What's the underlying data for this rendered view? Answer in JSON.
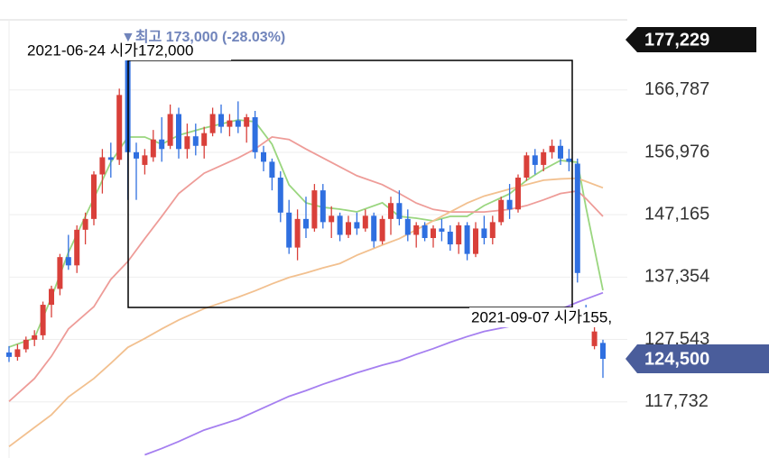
{
  "chart_data": {
    "type": "candlestick",
    "up_color": "#d9403a",
    "down_color": "#2f6fe0",
    "ylim": [
      108900,
      180940
    ],
    "yticks": [
      {
        "value": 166787,
        "label": "166,787"
      },
      {
        "value": 156976,
        "label": "156,976"
      },
      {
        "value": 147165,
        "label": "147,165"
      },
      {
        "value": 137354,
        "label": "137,354"
      },
      {
        "value": 127543,
        "label": "127,543"
      },
      {
        "value": 117732,
        "label": "117,732"
      }
    ],
    "grid": true,
    "top_badge": "177,229",
    "last_price": {
      "value": 124500,
      "label": "124,500",
      "color": "#4a5d9b"
    },
    "high_annotation": "▼최고 173,000 (-28.03%)",
    "range_labels": [
      "2021-06-24 시가172,000",
      "2021-09-07 시가155,"
    ],
    "candles": {
      "open": [
        125500,
        124800,
        126000,
        127500,
        128200,
        133000,
        135500,
        140500,
        139200,
        144800,
        146500,
        153500,
        156200,
        155800,
        172000,
        157000,
        155000,
        156200,
        159000,
        158000,
        163000,
        157500,
        159500,
        158000,
        160000,
        163000,
        161000,
        162000,
        161000,
        162500,
        157000,
        155500,
        153000,
        147500,
        142000,
        146500,
        145000,
        151000,
        146000,
        147000,
        144000,
        146000,
        145000,
        147000,
        143000,
        146500,
        149000,
        146500,
        144000,
        145500,
        143500,
        145000,
        144500,
        142500,
        145500,
        141000,
        145000,
        143500,
        146000,
        149500,
        148000,
        153000,
        156500,
        155000,
        157000,
        158000,
        156000,
        155200,
        132000,
        126500,
        127000
      ],
      "high": [
        126500,
        126800,
        128000,
        129000,
        133500,
        136000,
        141000,
        144000,
        145500,
        147500,
        154000,
        157500,
        158500,
        167000,
        173000,
        158500,
        157500,
        160500,
        162500,
        164500,
        164000,
        161500,
        161500,
        161000,
        164000,
        164500,
        163000,
        165000,
        163000,
        163500,
        158000,
        156000,
        154000,
        149500,
        148000,
        150000,
        152000,
        152000,
        148500,
        147500,
        147000,
        147500,
        148000,
        147500,
        147000,
        150000,
        151000,
        148000,
        146000,
        146000,
        145500,
        146500,
        145500,
        146000,
        146000,
        146000,
        147000,
        147000,
        150000,
        152000,
        153500,
        157000,
        157500,
        157500,
        159000,
        159000,
        157500,
        156000,
        133000,
        132000,
        127500
      ],
      "low": [
        124000,
        124200,
        125500,
        126500,
        127500,
        131000,
        134500,
        138500,
        138000,
        142500,
        145500,
        150500,
        153000,
        155000,
        149500,
        149500,
        153500,
        155500,
        155500,
        157500,
        156000,
        156000,
        156500,
        156000,
        159500,
        160000,
        159500,
        160000,
        158500,
        156000,
        154000,
        151000,
        146000,
        141000,
        140000,
        143500,
        144500,
        145000,
        143500,
        143000,
        143500,
        144000,
        144500,
        142000,
        142500,
        144000,
        145500,
        143000,
        142000,
        143000,
        142000,
        143000,
        141500,
        141000,
        140000,
        140500,
        142500,
        142500,
        145500,
        146500,
        147500,
        152500,
        153500,
        154000,
        156000,
        155000,
        154000,
        136500,
        129500,
        126000,
        121500
      ],
      "close": [
        124800,
        126000,
        127500,
        128200,
        133000,
        135500,
        140500,
        139200,
        144800,
        146500,
        153500,
        156200,
        155800,
        166000,
        157000,
        156000,
        156500,
        159000,
        157500,
        163000,
        157500,
        159500,
        158000,
        160000,
        163000,
        161000,
        162000,
        161000,
        162500,
        157000,
        155500,
        153000,
        147500,
        142000,
        146500,
        145000,
        151000,
        146000,
        147000,
        144000,
        146000,
        145000,
        147000,
        143000,
        146500,
        149000,
        146500,
        144000,
        145500,
        143500,
        145000,
        144500,
        142500,
        145500,
        141000,
        145000,
        143500,
        146000,
        149500,
        148000,
        153000,
        156500,
        155000,
        157000,
        158000,
        156000,
        155500,
        138000,
        130000,
        128800,
        124500
      ]
    },
    "ma_x": [
      0,
      3,
      5,
      7,
      10,
      12,
      14,
      16,
      18,
      20,
      23,
      27,
      29,
      31,
      33,
      35,
      37,
      39,
      41,
      44,
      46,
      48,
      50,
      52,
      54,
      56,
      59,
      61,
      63,
      65,
      67,
      68,
      70
    ],
    "series": [
      {
        "color": "#9ad67f",
        "values": [
          126350,
          127770,
          134150,
          141240,
          149740,
          155420,
          159390,
          159390,
          158250,
          159670,
          160800,
          162080,
          161800,
          158250,
          151870,
          149040,
          148330,
          148040,
          147620,
          149040,
          146910,
          146620,
          146200,
          146910,
          146910,
          148610,
          150450,
          152580,
          154280,
          155700,
          155420,
          148330,
          135280
        ]
      },
      {
        "color": "#ee9c98",
        "values": [
          117800,
          121400,
          124900,
          129200,
          132700,
          137000,
          139800,
          143400,
          146900,
          150500,
          153700,
          156100,
          157500,
          159400,
          159000,
          157500,
          156100,
          154700,
          153300,
          151900,
          150500,
          149000,
          148000,
          147600,
          147600,
          147600,
          148000,
          148600,
          149500,
          150500,
          150900,
          149700,
          146900
        ]
      },
      {
        "color": "#f2c08f",
        "values": [
          110700,
          113700,
          115700,
          118500,
          121400,
          123800,
          126300,
          127700,
          129200,
          130600,
          132400,
          134200,
          135200,
          136300,
          137300,
          138000,
          138800,
          139500,
          140800,
          142400,
          143400,
          144800,
          146200,
          147600,
          149000,
          150100,
          151200,
          151900,
          152600,
          152800,
          152900,
          152400,
          151400
        ]
      },
      {
        "color": "#a57ff0",
        "values": [
          null,
          null,
          null,
          null,
          null,
          null,
          null,
          109400,
          110400,
          111500,
          113300,
          115000,
          116200,
          117400,
          118600,
          119500,
          120500,
          121400,
          122300,
          123500,
          124200,
          125200,
          126100,
          127100,
          128000,
          128800,
          129600,
          130500,
          131300,
          132300,
          133400,
          133900,
          134900
        ]
      }
    ]
  }
}
